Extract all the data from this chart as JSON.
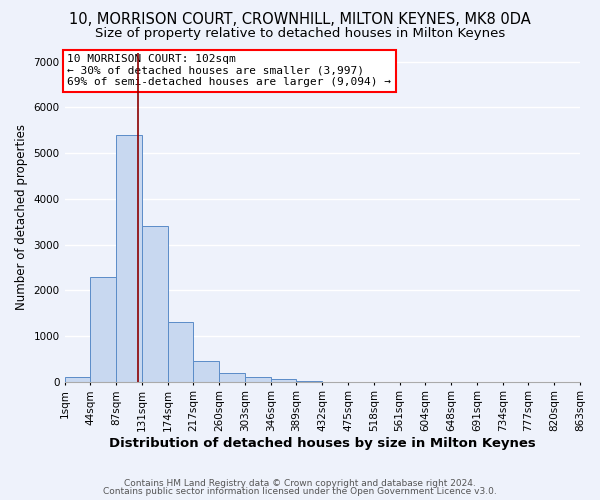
{
  "title_line1": "10, MORRISON COURT, CROWNHILL, MILTON KEYNES, MK8 0DA",
  "title_line2": "Size of property relative to detached houses in Milton Keynes",
  "xlabel": "Distribution of detached houses by size in Milton Keynes",
  "ylabel": "Number of detached properties",
  "bin_labels": [
    "1sqm",
    "44sqm",
    "87sqm",
    "131sqm",
    "174sqm",
    "217sqm",
    "260sqm",
    "303sqm",
    "346sqm",
    "389sqm",
    "432sqm",
    "475sqm",
    "518sqm",
    "561sqm",
    "604sqm",
    "648sqm",
    "691sqm",
    "734sqm",
    "777sqm",
    "820sqm",
    "863sqm"
  ],
  "bar_values": [
    100,
    2300,
    5400,
    3400,
    1300,
    450,
    200,
    100,
    60,
    5,
    0,
    0,
    0,
    0,
    0,
    0,
    0,
    0,
    0,
    0
  ],
  "bar_color": "#c8d8f0",
  "bar_edge_color": "#5b8cc8",
  "ylim": [
    0,
    7200
  ],
  "yticks": [
    0,
    1000,
    2000,
    3000,
    4000,
    5000,
    6000,
    7000
  ],
  "red_line_x": 2.35,
  "annotation_title": "10 MORRISON COURT: 102sqm",
  "annotation_line1": "← 30% of detached houses are smaller (3,997)",
  "annotation_line2": "69% of semi-detached houses are larger (9,094) →",
  "footer_line1": "Contains HM Land Registry data © Crown copyright and database right 2024.",
  "footer_line2": "Contains public sector information licensed under the Open Government Licence v3.0.",
  "bg_color": "#eef2fb",
  "grid_color": "#ffffff",
  "title1_fontsize": 10.5,
  "title2_fontsize": 9.5,
  "xlabel_fontsize": 9.5,
  "ylabel_fontsize": 8.5,
  "tick_fontsize": 7.5,
  "annot_fontsize": 8.0,
  "footer_fontsize": 6.5
}
